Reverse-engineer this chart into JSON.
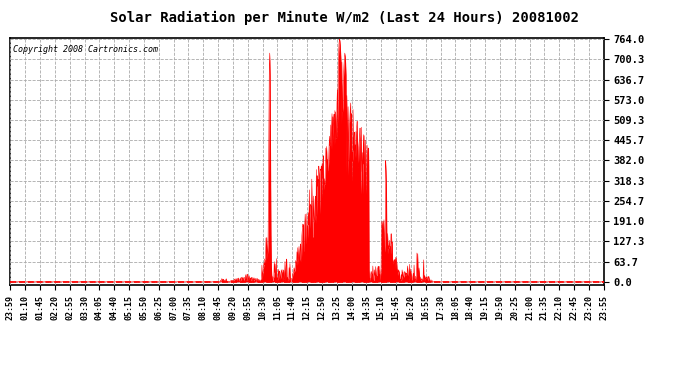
{
  "title": "Solar Radiation per Minute W/m2 (Last 24 Hours) 20081002",
  "copyright": "Copyright 2008 Cartronics.com",
  "yticks": [
    0.0,
    63.7,
    127.3,
    191.0,
    254.7,
    318.3,
    382.0,
    445.7,
    509.3,
    573.0,
    636.7,
    700.3,
    764.0
  ],
  "ymax": 764.0,
  "ymin": 0.0,
  "bar_color": "#FF0000",
  "bg_color": "#FFFFFF",
  "grid_color": "#AAAAAA",
  "dashed_line_color": "#FF0000",
  "xtick_labels": [
    "23:59",
    "01:10",
    "01:45",
    "02:20",
    "02:55",
    "03:30",
    "04:05",
    "04:40",
    "05:15",
    "05:50",
    "06:25",
    "07:00",
    "07:35",
    "08:10",
    "08:45",
    "09:20",
    "09:55",
    "10:30",
    "11:05",
    "11:40",
    "12:15",
    "12:50",
    "13:25",
    "14:00",
    "14:35",
    "15:10",
    "15:45",
    "16:20",
    "16:55",
    "17:30",
    "18:05",
    "18:40",
    "19:15",
    "19:50",
    "20:25",
    "21:00",
    "21:35",
    "22:10",
    "22:45",
    "23:20",
    "23:55"
  ],
  "n_points": 1440
}
